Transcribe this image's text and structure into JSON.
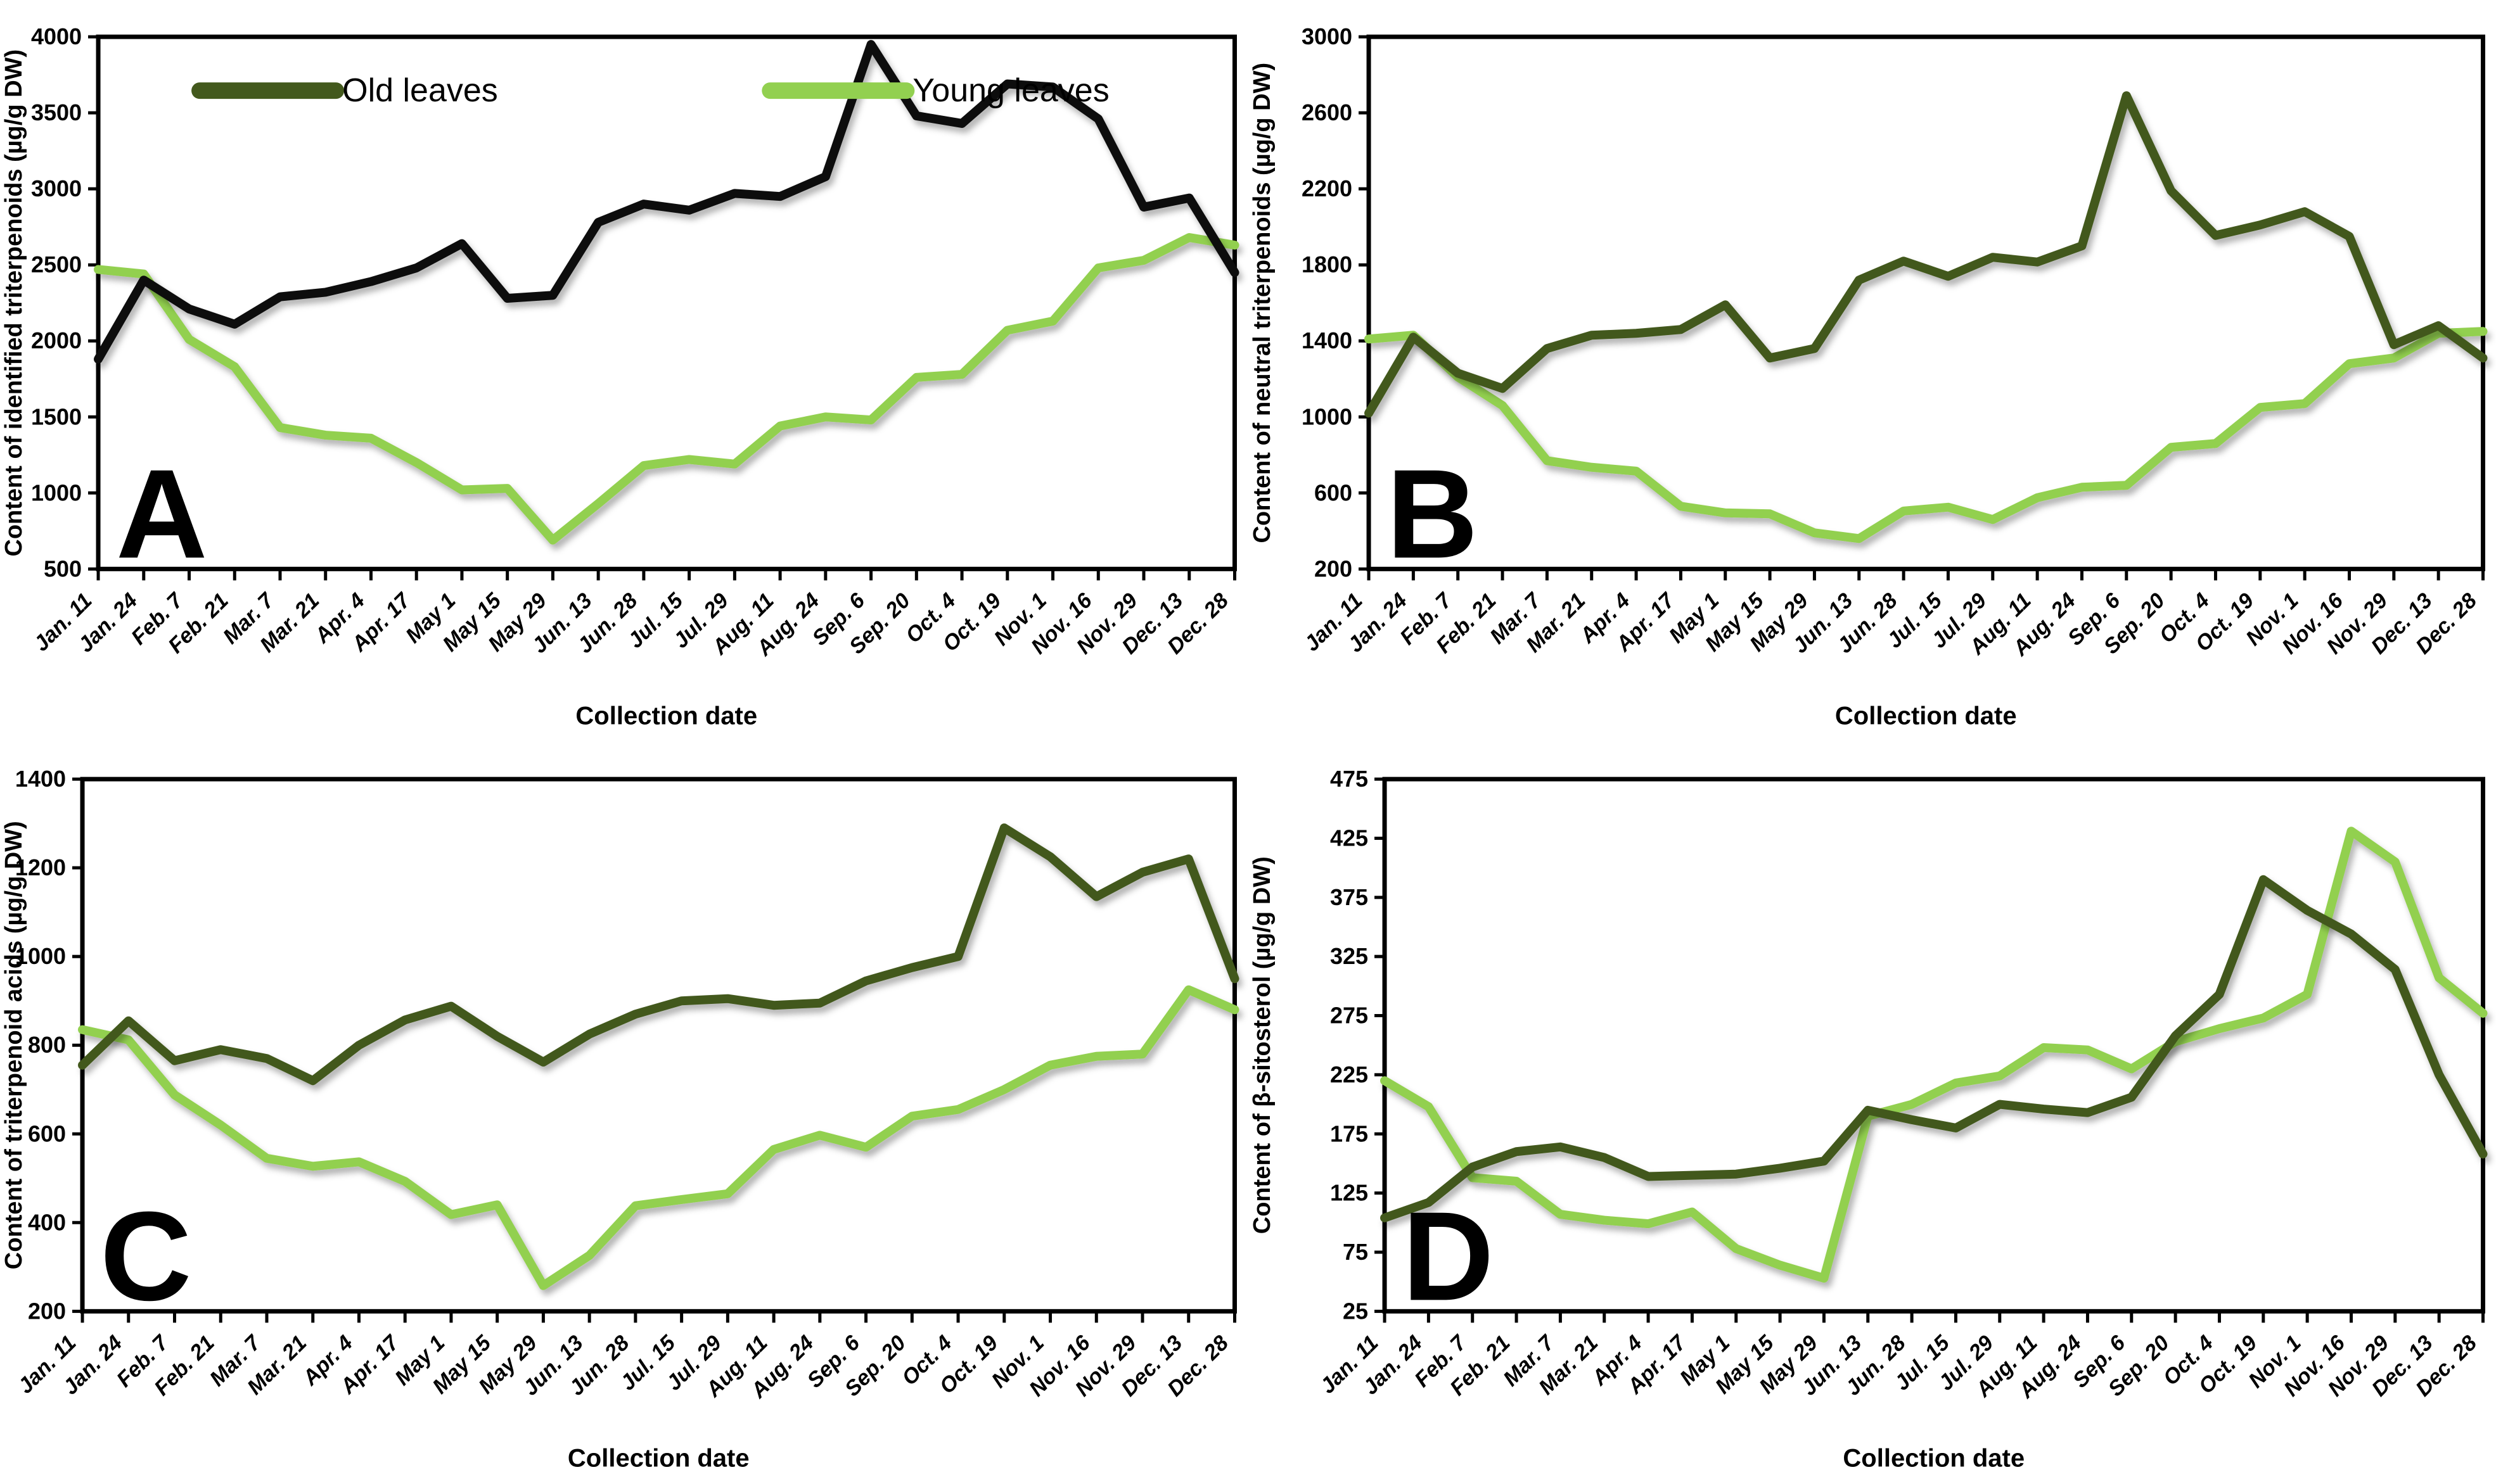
{
  "figure": {
    "background": "#ffffff",
    "x_axis_title": "Collection date",
    "legend": {
      "items": [
        {
          "name": "old-leaves",
          "label": "Old leaves",
          "color": "#43591d"
        },
        {
          "name": "young-leaves",
          "label": "Young leaves",
          "color": "#92d050"
        }
      ],
      "position": "top-left inside plot, panel A only"
    }
  },
  "colors": {
    "old_line_panel_a": "#0b0b0b",
    "old_line": "#43591d",
    "young_line": "#92d050",
    "axis": "#000000",
    "tick_text": "#000000"
  },
  "chart_data": [
    {
      "id": "A",
      "type": "line",
      "panel_letter": "A",
      "ylabel": "Content of identified triterpenoids (µg/g DW)",
      "xlabel": "Collection date",
      "ylim": [
        500,
        4000
      ],
      "ystep": 500,
      "grid": false,
      "legend_position": "top-left-inside",
      "show_legend": true,
      "old_color": "#0b0b0b",
      "categories": [
        "Jan. 11",
        "Jan. 24",
        "Feb. 7",
        "Feb. 21",
        "Mar. 7",
        "Mar. 21",
        "Apr. 4",
        "Apr. 17",
        "May 1",
        "May 15",
        "May 29",
        "Jun. 13",
        "Jun. 28",
        "Jul. 15",
        "Jul. 29",
        "Aug. 11",
        "Aug. 24",
        "Sep. 6",
        "Sep. 20",
        "Oct. 4",
        "Oct. 19",
        "Nov. 1",
        "Nov. 16",
        "Nov. 29",
        "Dec. 13",
        "Dec. 28"
      ],
      "series": [
        {
          "name": "Old leaves",
          "values": [
            1880,
            2400,
            2210,
            2110,
            2290,
            2320,
            2390,
            2480,
            2640,
            2280,
            2300,
            2780,
            2900,
            2860,
            2970,
            2950,
            3080,
            3950,
            3480,
            3430,
            3690,
            3670,
            3460,
            2880,
            2940,
            2450
          ]
        },
        {
          "name": "Young leaves",
          "values": [
            2470,
            2440,
            2010,
            1830,
            1430,
            1380,
            1360,
            1200,
            1020,
            1030,
            690,
            930,
            1180,
            1220,
            1190,
            1440,
            1500,
            1480,
            1760,
            1780,
            2070,
            2130,
            2480,
            2530,
            2680,
            2630
          ]
        }
      ]
    },
    {
      "id": "B",
      "type": "line",
      "panel_letter": "B",
      "ylabel": "Content of neutral triterpenoids (µg/g DW)",
      "xlabel": "Collection date",
      "ylim": [
        200,
        3000
      ],
      "ystep": 400,
      "grid": false,
      "show_legend": false,
      "old_color": "#43591d",
      "categories": [
        "Jan. 11",
        "Jan. 24",
        "Feb. 7",
        "Feb. 21",
        "Mar. 7",
        "Mar. 21",
        "Apr. 4",
        "Apr. 17",
        "May 1",
        "May 15",
        "May 29",
        "Jun. 13",
        "Jun. 28",
        "Jul. 15",
        "Jul. 29",
        "Aug. 11",
        "Aug. 24",
        "Sep. 6",
        "Sep. 20",
        "Oct. 4",
        "Oct. 19",
        "Nov. 1",
        "Nov. 16",
        "Nov. 29",
        "Dec. 13",
        "Dec. 28"
      ],
      "series": [
        {
          "name": "Old leaves",
          "values": [
            1020,
            1420,
            1230,
            1150,
            1360,
            1430,
            1440,
            1460,
            1590,
            1310,
            1360,
            1720,
            1820,
            1740,
            1840,
            1815,
            1900,
            2690,
            2190,
            1955,
            2010,
            2080,
            1950,
            1380,
            1480,
            1310
          ]
        },
        {
          "name": "Young leaves",
          "values": [
            1410,
            1430,
            1210,
            1060,
            770,
            735,
            715,
            530,
            495,
            490,
            390,
            360,
            505,
            525,
            460,
            575,
            630,
            640,
            840,
            860,
            1050,
            1070,
            1280,
            1310,
            1440,
            1450
          ]
        }
      ]
    },
    {
      "id": "C",
      "type": "line",
      "panel_letter": "C",
      "ylabel": "Content of triterpenoid acids (µg/g DW)",
      "xlabel": "Collection date",
      "ylim": [
        200,
        1400
      ],
      "ystep": 200,
      "grid": false,
      "show_legend": false,
      "old_color": "#43591d",
      "categories": [
        "Jan. 11",
        "Jan. 24",
        "Feb. 7",
        "Feb. 21",
        "Mar. 7",
        "Mar. 21",
        "Apr. 4",
        "Apr. 17",
        "May 1",
        "May 15",
        "May 29",
        "Jun. 13",
        "Jun. 28",
        "Jul. 15",
        "Jul. 29",
        "Aug. 11",
        "Aug. 24",
        "Sep. 6",
        "Sep. 20",
        "Oct. 4",
        "Oct. 19",
        "Nov. 1",
        "Nov. 16",
        "Nov. 29",
        "Dec. 13",
        "Dec. 28"
      ],
      "series": [
        {
          "name": "Old leaves",
          "values": [
            755,
            855,
            765,
            790,
            770,
            720,
            800,
            857,
            888,
            820,
            762,
            825,
            870,
            900,
            905,
            890,
            895,
            945,
            975,
            1000,
            1290,
            1225,
            1135,
            1190,
            1220,
            950
          ]
        },
        {
          "name": "Young leaves",
          "values": [
            835,
            812,
            688,
            620,
            545,
            527,
            537,
            493,
            418,
            440,
            258,
            326,
            438,
            452,
            465,
            565,
            597,
            570,
            640,
            655,
            700,
            755,
            775,
            780,
            925,
            880
          ]
        }
      ]
    },
    {
      "id": "D",
      "type": "line",
      "panel_letter": "D",
      "ylabel": "Content of β-sitosterol (µg/g DW)",
      "xlabel": "Collection date",
      "ylim": [
        25,
        475
      ],
      "ystep": 50,
      "grid": false,
      "show_legend": false,
      "old_color": "#43591d",
      "categories": [
        "Jan. 11",
        "Jan. 24",
        "Feb. 7",
        "Feb. 21",
        "Mar. 7",
        "Mar. 21",
        "Apr. 4",
        "Apr. 17",
        "May 1",
        "May 15",
        "May 29",
        "Jun. 13",
        "Jun. 28",
        "Jul. 15",
        "Jul. 29",
        "Aug. 11",
        "Aug. 24",
        "Sep. 6",
        "Sep. 20",
        "Oct. 4",
        "Oct. 19",
        "Nov. 1",
        "Nov. 16",
        "Nov. 29",
        "Dec. 13",
        "Dec. 28"
      ],
      "series": [
        {
          "name": "Old leaves",
          "values": [
            104,
            117,
            147,
            160,
            164,
            155,
            139,
            140,
            141,
            146,
            152,
            195,
            187,
            180,
            200,
            196,
            193,
            206,
            258,
            293,
            390,
            364,
            344,
            314,
            225,
            158
          ]
        },
        {
          "name": "Young leaves",
          "values": [
            220,
            198,
            138,
            135,
            107,
            102,
            99,
            109,
            78,
            64,
            53,
            190,
            200,
            218,
            224,
            248,
            246,
            230,
            253,
            264,
            273,
            293,
            431,
            405,
            307,
            277
          ]
        }
      ]
    }
  ]
}
